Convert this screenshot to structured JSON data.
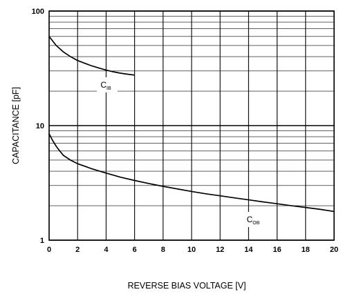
{
  "chart_data": {
    "type": "line",
    "xlabel": "REVERSE BIAS VOLTAGE [V]",
    "ylabel": "CAPACITANCE [pF]",
    "xlim": [
      0,
      20
    ],
    "ylim": [
      1,
      100
    ],
    "yscale": "log",
    "grid": true,
    "x_ticks": [
      "0",
      "2",
      "4",
      "6",
      "8",
      "10",
      "12",
      "14",
      "16",
      "18",
      "20"
    ],
    "y_ticks": [
      "1",
      "10",
      "100"
    ],
    "series": [
      {
        "name": "C",
        "subscript": "IB",
        "x": [
          0,
          0.5,
          1,
          1.5,
          2,
          2.5,
          3,
          3.5,
          4,
          4.5,
          5,
          5.5,
          6
        ],
        "y": [
          60,
          50,
          44,
          40,
          37,
          35,
          33.2,
          31.8,
          30.5,
          29.5,
          28.7,
          28.1,
          27.6
        ]
      },
      {
        "name": "C",
        "subscript": "OB",
        "x": [
          0,
          0.25,
          0.5,
          0.75,
          1,
          1.5,
          2,
          3,
          4,
          5,
          6,
          7,
          8,
          9,
          10,
          11,
          12,
          13,
          14,
          15,
          16,
          17,
          18,
          19,
          20
        ],
        "y": [
          8.5,
          7.4,
          6.6,
          6.0,
          5.5,
          5.0,
          4.65,
          4.2,
          3.85,
          3.55,
          3.32,
          3.12,
          2.95,
          2.8,
          2.66,
          2.54,
          2.44,
          2.34,
          2.25,
          2.16,
          2.08,
          2.0,
          1.93,
          1.86,
          1.78
        ]
      }
    ]
  }
}
